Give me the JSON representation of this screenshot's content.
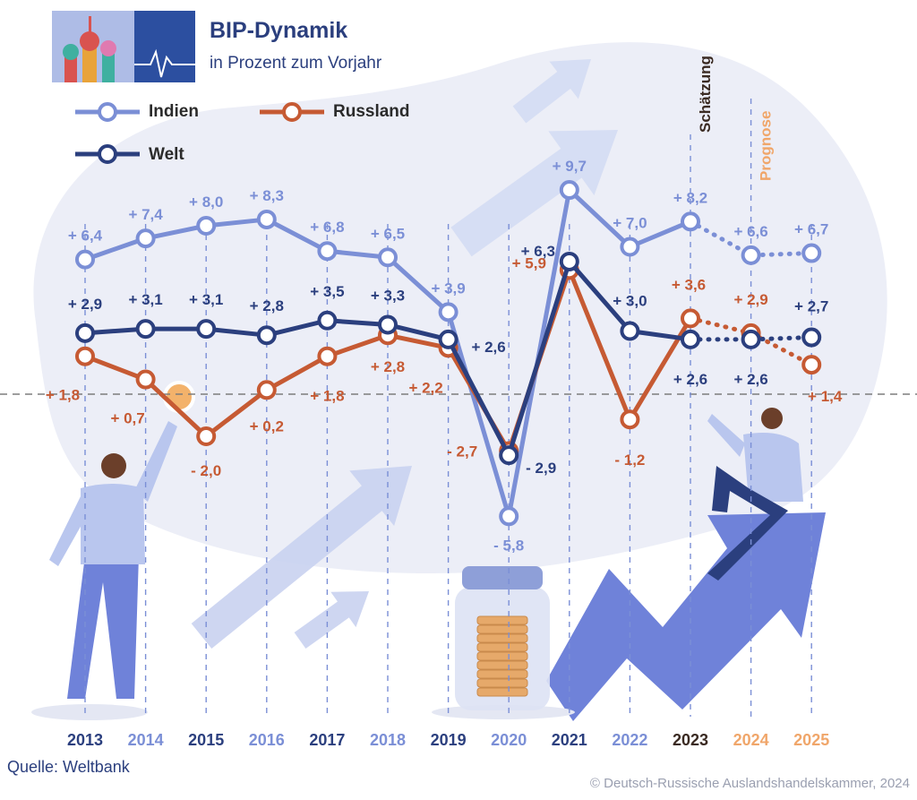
{
  "header": {
    "title": "BIP-Dynamik",
    "subtitle": "in Prozent zum Vorjahr"
  },
  "footer": {
    "source": "Quelle: Weltbank",
    "copyright": "© Deutsch-Russische Auslandshandelskammer, 2024"
  },
  "annotations": {
    "estimate": "Schätzung",
    "forecast": "Prognose"
  },
  "colors": {
    "indien": "#7b8fd6",
    "russland": "#c65a33",
    "welt": "#2b3f7e",
    "estimate": "#3a2a22",
    "forecast": "#f0a66a",
    "background_blob": "#eceef7",
    "arrow": "#6f82d9"
  },
  "chart_data": {
    "type": "line",
    "title": "BIP-Dynamik",
    "subtitle": "in Prozent zum Vorjahr",
    "x": [
      "2013",
      "2014",
      "2015",
      "2016",
      "2017",
      "2018",
      "2019",
      "2020",
      "2021",
      "2022",
      "2023",
      "2024",
      "2025"
    ],
    "series": [
      {
        "name": "Indien",
        "key": "indien",
        "values": [
          6.4,
          7.4,
          8.0,
          8.3,
          6.8,
          6.5,
          3.9,
          -5.8,
          9.7,
          7.0,
          8.2,
          6.6,
          6.7
        ],
        "labels": [
          "+ 6,4",
          "+ 7,4",
          "+ 8,0",
          "+ 8,3",
          "+ 6,8",
          "+ 6,5",
          "+ 3,9",
          "- 5,8",
          "+ 9,7",
          "+ 7,0",
          "+ 8,2",
          "+ 6,6",
          "+ 6,7"
        ]
      },
      {
        "name": "Russland",
        "key": "russland",
        "values": [
          1.8,
          0.7,
          -2.0,
          0.2,
          1.8,
          2.8,
          2.2,
          -2.7,
          5.9,
          -1.2,
          3.6,
          2.9,
          1.4
        ],
        "labels": [
          "+ 1,8",
          "+ 0,7",
          "- 2,0",
          "+ 0,2",
          "+ 1,8",
          "+ 2,8",
          "+ 2,2",
          "- 2,7",
          "+ 5,9",
          "- 1,2",
          "+ 3,6",
          "+ 2,9",
          "+ 1,4"
        ]
      },
      {
        "name": "Welt",
        "key": "welt",
        "values": [
          2.9,
          3.1,
          3.1,
          2.8,
          3.5,
          3.3,
          2.6,
          -2.9,
          6.3,
          3.0,
          2.6,
          2.6,
          2.7
        ],
        "labels": [
          "+ 2,9",
          "+ 3,1",
          "+ 3,1",
          "+ 2,8",
          "+ 3,5",
          "+ 3,3",
          "+ 2,6",
          "- 2,9",
          "+ 6,3",
          "+ 3,0",
          "+ 2,6",
          "+ 2,6",
          "+ 2,7"
        ]
      }
    ],
    "estimate_years": [
      "2023"
    ],
    "forecast_years": [
      "2024",
      "2025"
    ],
    "ylim": [
      -6.5,
      10.5
    ],
    "reference_line": 0,
    "legend": "top-left"
  }
}
